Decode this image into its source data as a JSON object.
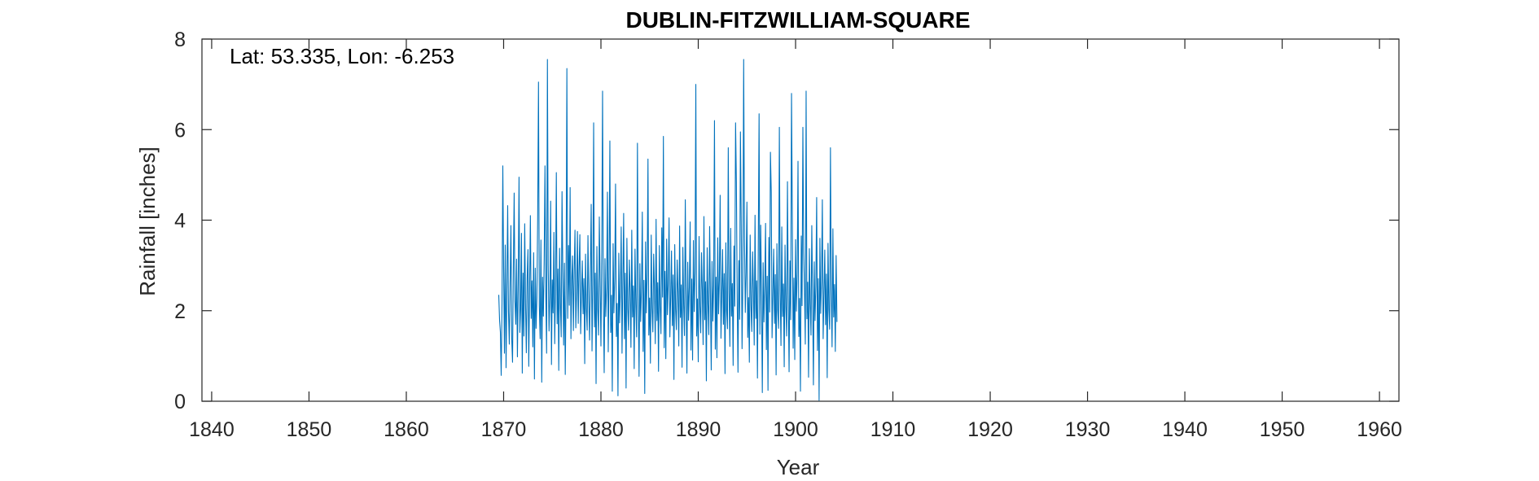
{
  "chart_data": {
    "type": "line",
    "title": "DUBLIN-FITZWILLIAM-SQUARE",
    "annotation": "Lat: 53.335, Lon: -6.253",
    "xlabel": "Year",
    "ylabel": "Rainfall [inches]",
    "xlim": [
      1839,
      1962
    ],
    "ylim": [
      0,
      8
    ],
    "x_ticks": [
      1840,
      1850,
      1860,
      1870,
      1880,
      1890,
      1900,
      1910,
      1920,
      1930,
      1940,
      1950,
      1960
    ],
    "y_ticks": [
      0,
      2,
      4,
      6,
      8
    ],
    "grid": false,
    "line_color": "#0072BD",
    "series": [
      {
        "x_start": 1869.5,
        "x_step_years": 0.0833333,
        "values": [
          2.35,
          1.79,
          1.53,
          0.57,
          2.15,
          5.2,
          2.92,
          1.06,
          3.45,
          0.74,
          2.47,
          4.32,
          1.98,
          1.26,
          2.62,
          3.88,
          1.37,
          0.86,
          2.95,
          4.6,
          2.21,
          1.7,
          3.14,
          0.98,
          2.58,
          4.95,
          1.52,
          2.04,
          3.71,
          0.62,
          2.83,
          1.44,
          3.92,
          2.16,
          1.07,
          2.71,
          3.35,
          0.77,
          2.48,
          4.1,
          1.83,
          2.66,
          1.2,
          3.28,
          0.49,
          2.94,
          1.61,
          2.27,
          4.05,
          7.05,
          2.12,
          1.38,
          3.56,
          0.42,
          2.74,
          1.88,
          3.11,
          5.2,
          2.43,
          1.06,
          7.55,
          3.02,
          1.55,
          2.31,
          4.42,
          0.81,
          2.68,
          1.95,
          3.73,
          1.27,
          2.56,
          5.05,
          1.71,
          2.92,
          0.68,
          3.38,
          2.17,
          1.42,
          4.63,
          2.86,
          1.24,
          3.05,
          0.59,
          2.49,
          7.35,
          1.83,
          3.44,
          2.12,
          4.72,
          1.38,
          2.67,
          3.21,
          1.56,
          2.84,
          3.78,
          1.62,
          2.41,
          3.75,
          1.72,
          2.95,
          3.68,
          1.49,
          2.38,
          3.1,
          1.93,
          2.71,
          0.83,
          3.25,
          2.04,
          1.57,
          3.66,
          2.22,
          1.35,
          2.91,
          4.35,
          1.11,
          2.58,
          6.15,
          1.64,
          2.83,
          0.39,
          3.42,
          2.05,
          1.46,
          4.07,
          2.62,
          1.22,
          3.31,
          6.85,
          2.14,
          0.63,
          3.15,
          1.87,
          2.51,
          4.62,
          1.09,
          2.76,
          5.75,
          1.52,
          2.34,
          0.22,
          3.48,
          1.95,
          2.71,
          4.8,
          1.43,
          2.16,
          0.12,
          3.27,
          1.73,
          2.49,
          3.85,
          1.06,
          2.61,
          4.15,
          1.38,
          2.83,
          0.29,
          3.6,
          2.05,
          1.57,
          3.12,
          2.44,
          1.19,
          3.78,
          1.86,
          2.55,
          0.72,
          3.36,
          2.14,
          1.42,
          5.7,
          2.31,
          0.55,
          3.04,
          1.76,
          2.48,
          4.18,
          1.1,
          2.67,
          0.17,
          3.52,
          1.95,
          2.81,
          5.35,
          1.46,
          2.28,
          0.84,
          3.67,
          2.06,
          1.53,
          3.25,
          2.45,
          1.27,
          4.02,
          1.78,
          2.62,
          0.66,
          3.44,
          2.11,
          1.49,
          3.83,
          2.3,
          5.85,
          1.18,
          2.87,
          0.94,
          3.58,
          1.91,
          2.63,
          4.05,
          1.42,
          2.31,
          3.32,
          1.67,
          2.79,
          0.48,
          3.46,
          2.05,
          1.58,
          3.12,
          2.41,
          1.22,
          3.87,
          1.85,
          2.57,
          0.75,
          3.4,
          2.13,
          1.45,
          4.45,
          2.29,
          0.62,
          3.07,
          1.79,
          2.52,
          3.96,
          1.13,
          2.7,
          0.91,
          3.55,
          1.98,
          2.83,
          7.0,
          1.44,
          2.26,
          0.87,
          3.64,
          2.09,
          1.51,
          3.28,
          2.48,
          1.25,
          4.08,
          1.8,
          2.64,
          0.45,
          3.39,
          2.15,
          1.47,
          3.86,
          2.32,
          0.69,
          3.09,
          1.77,
          2.55,
          6.2,
          1.15,
          2.74,
          0.96,
          3.61,
          1.93,
          2.67,
          4.55,
          1.39,
          2.34,
          3.35,
          1.7,
          2.82,
          0.61,
          3.5,
          2.02,
          1.6,
          5.6,
          2.4,
          1.21,
          3.82,
          1.88,
          2.6,
          0.79,
          3.43,
          2.1,
          6.15,
          4.85,
          2.27,
          0.64,
          3.11,
          1.81,
          5.95,
          3.98,
          1.16,
          2.73,
          7.55,
          3.59,
          1.96,
          2.86,
          4.4,
          1.41,
          2.29,
          0.86,
          3.67,
          2.12,
          1.54,
          3.3,
          2.47,
          1.24,
          4.11,
          1.83,
          2.66,
          0.51,
          3.41,
          6.35,
          1.48,
          3.89,
          2.33,
          0.19,
          3.06,
          1.75,
          2.56,
          3.93,
          1.14,
          2.76,
          0.24,
          3.62,
          1.97,
          5.5,
          4.62,
          1.4,
          2.35,
          3.36,
          1.72,
          2.8,
          0.58,
          3.48,
          2.01,
          1.61,
          6.05,
          2.43,
          1.23,
          3.85,
          1.87,
          2.59,
          0.76,
          3.45,
          2.09,
          1.44,
          4.85,
          2.3,
          0.65,
          3.1,
          1.8,
          6.8,
          4.0,
          1.17,
          2.72,
          0.92,
          3.57,
          1.99,
          2.84,
          5.3,
          1.43,
          2.27,
          0.22,
          3.65,
          2.11,
          6.05,
          3.29,
          2.46,
          1.26,
          6.85,
          1.82,
          2.63,
          0.53,
          3.37,
          2.16,
          1.46,
          3.88,
          2.34,
          0.36,
          3.08,
          1.78,
          2.54,
          4.5,
          1.12,
          2.71,
          0.02,
          3.6,
          1.94,
          2.66,
          4.45,
          1.38,
          2.32,
          3.34,
          1.69,
          2.81,
          0.52,
          3.49,
          2.03,
          1.59,
          5.6,
          2.42,
          1.2,
          3.81,
          1.86,
          2.58,
          1.1,
          3.22,
          1.75
        ]
      }
    ]
  }
}
